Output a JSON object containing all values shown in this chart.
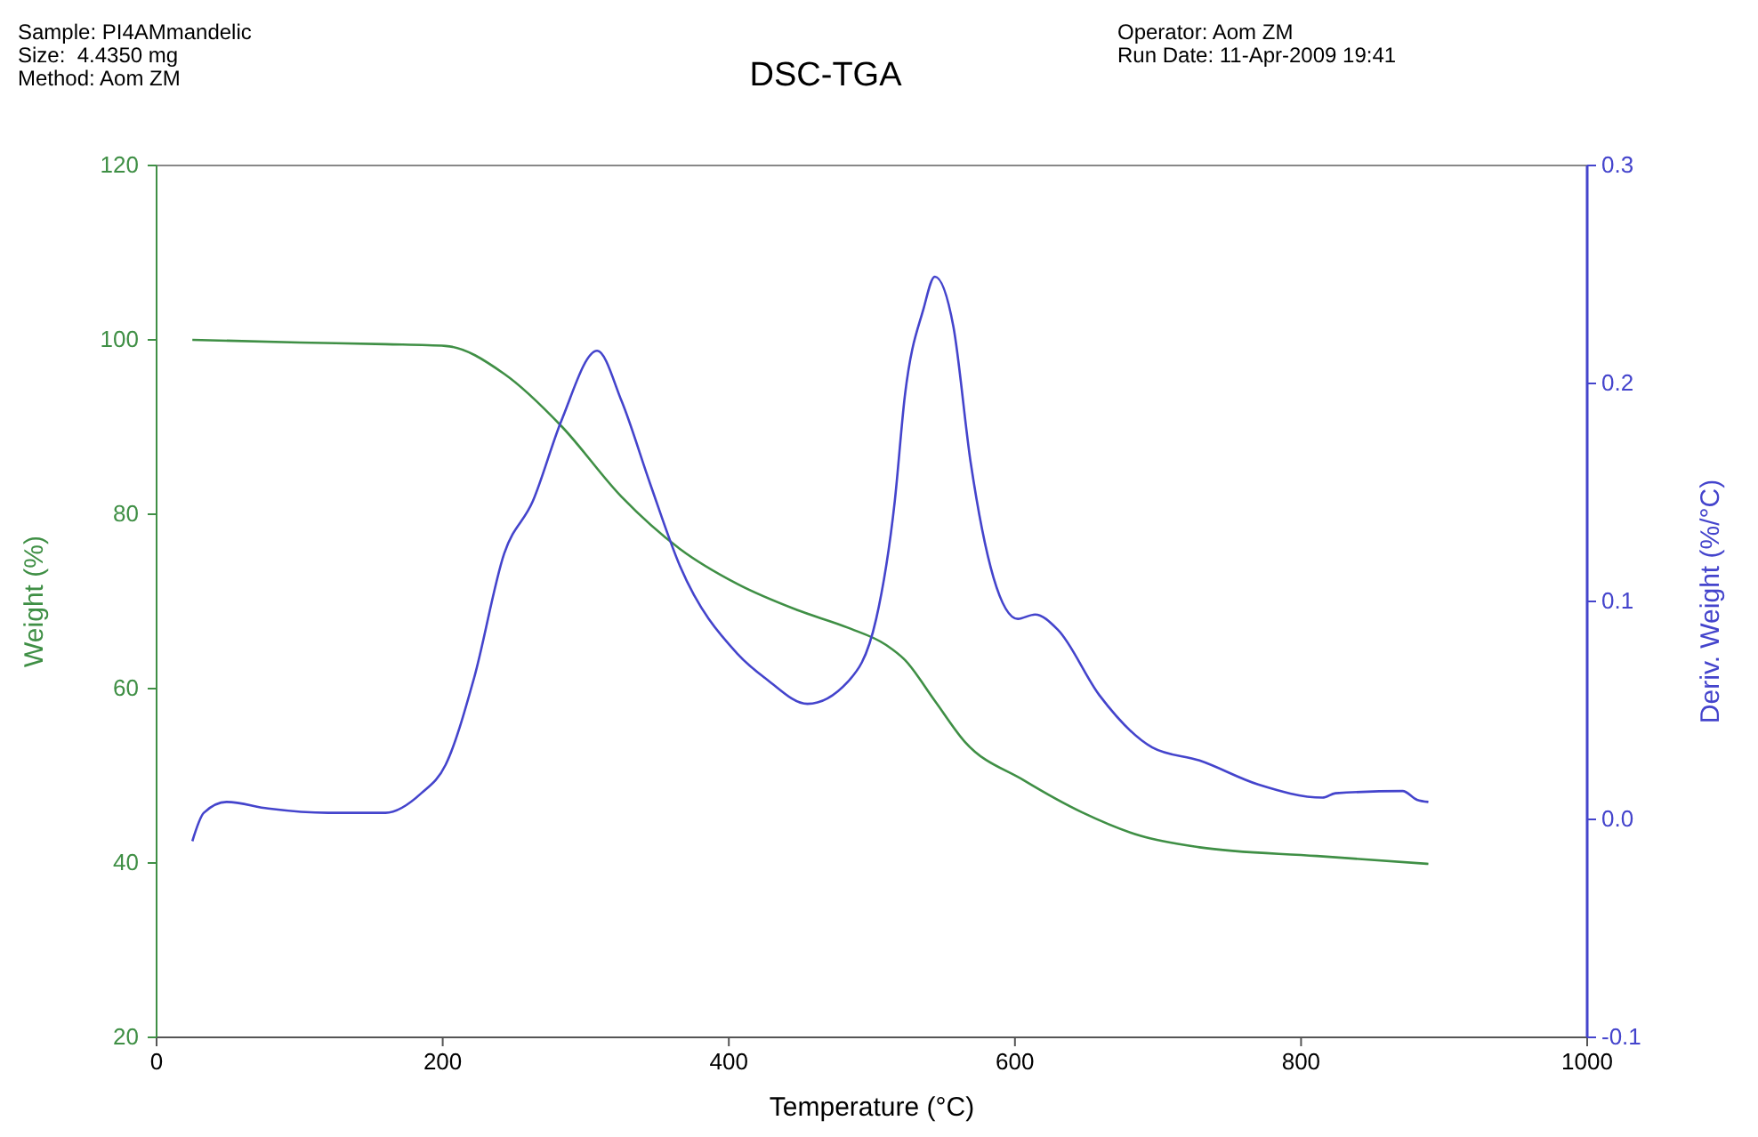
{
  "chart_data": {
    "type": "line",
    "title": "DSC-TGA",
    "xlabel": "Temperature (°C)",
    "ylabel": "Weight (%)",
    "y2label": "Deriv. Weight (%/°C)",
    "annotations": [
      "Sample: PI4AMmandelic",
      "Size:  4.4350 mg",
      "Method: Aom ZM",
      "Operator: Aom ZM",
      "Run Date: 11-Apr-2009 19:41"
    ],
    "xlim": [
      0,
      1000
    ],
    "xticks": [
      0,
      200,
      400,
      600,
      800,
      1000
    ],
    "ylim": [
      20,
      120
    ],
    "yticks": [
      20,
      40,
      60,
      80,
      100,
      120
    ],
    "y2lim": [
      -0.1,
      0.3
    ],
    "y2ticks": [
      {
        "value": -0.1,
        "label": "-0.1"
      },
      {
        "value": 0,
        "label": "0.0"
      },
      {
        "value": 0.1,
        "label": "0.1"
      },
      {
        "value": 0.2,
        "label": "0.2"
      },
      {
        "value": 0.3,
        "label": "0.3"
      }
    ],
    "grid": false,
    "marker": "none",
    "line_style": "solid",
    "series": [
      {
        "color": "#3f8f45",
        "x": [
          25,
          100,
          160,
          202,
          243,
          283,
          325,
          366,
          406,
          448,
          483,
          510,
          523,
          544,
          565,
          606,
          647,
          688,
          729,
          811,
          889
        ],
        "values": [
          100,
          99.7,
          99.5,
          99.3,
          96.1,
          90.1,
          82,
          76,
          72,
          69,
          67,
          65,
          63.3,
          58.6,
          53.9,
          49.5,
          45.8,
          43.1,
          41.8,
          40.8,
          39.9
        ]
      },
      {
        "color": "#4444cc",
        "axis": "y2",
        "x": [
          25,
          33,
          49,
          78,
          120,
          160,
          185,
          202,
          222,
          243,
          263,
          283,
          308,
          325,
          345,
          366,
          406,
          427,
          455,
          483,
          503,
          516,
          523,
          536,
          544,
          557,
          569,
          585,
          602,
          614,
          630,
          659,
          696,
          729,
          770,
          815,
          824,
          871,
          881,
          889
        ],
        "values": [
          -0.01,
          0.003,
          0.008,
          0.005,
          0.003,
          0.003,
          0.012,
          0.025,
          0.065,
          0.122,
          0.146,
          0.183,
          0.215,
          0.192,
          0.154,
          0.116,
          0.076,
          0.064,
          0.053,
          0.063,
          0.092,
          0.146,
          0.194,
          0.234,
          0.249,
          0.226,
          0.164,
          0.111,
          0.092,
          0.094,
          0.087,
          0.057,
          0.033,
          0.027,
          0.016,
          0.01,
          0.012,
          0.013,
          0.009,
          0.008
        ]
      }
    ]
  }
}
